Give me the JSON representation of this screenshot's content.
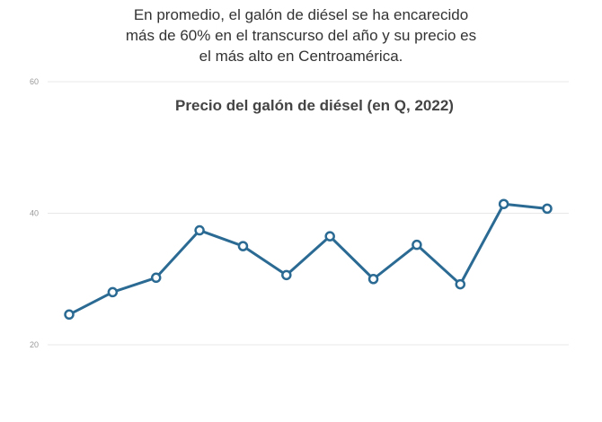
{
  "chart_data": {
    "type": "line",
    "subtitle": [
      "En promedio, el galón de diésel se ha encarecido",
      "más de 60% en el transcurso del año y su precio es",
      "el más alto en Centroamérica."
    ],
    "title": "Precio del galón de diésel (en Q, 2022)",
    "categories": [
      null,
      null,
      null,
      null,
      null,
      null,
      null,
      null,
      null,
      null,
      null,
      null
    ],
    "values": [
      24.6,
      28.0,
      30.2,
      37.4,
      35.0,
      30.6,
      36.5,
      30.0,
      35.2,
      29.2,
      41.4,
      40.7
    ],
    "color": "#2a6a93",
    "ylim": [
      20,
      60
    ],
    "yticks": [
      20,
      40,
      60
    ],
    "grid": true
  }
}
